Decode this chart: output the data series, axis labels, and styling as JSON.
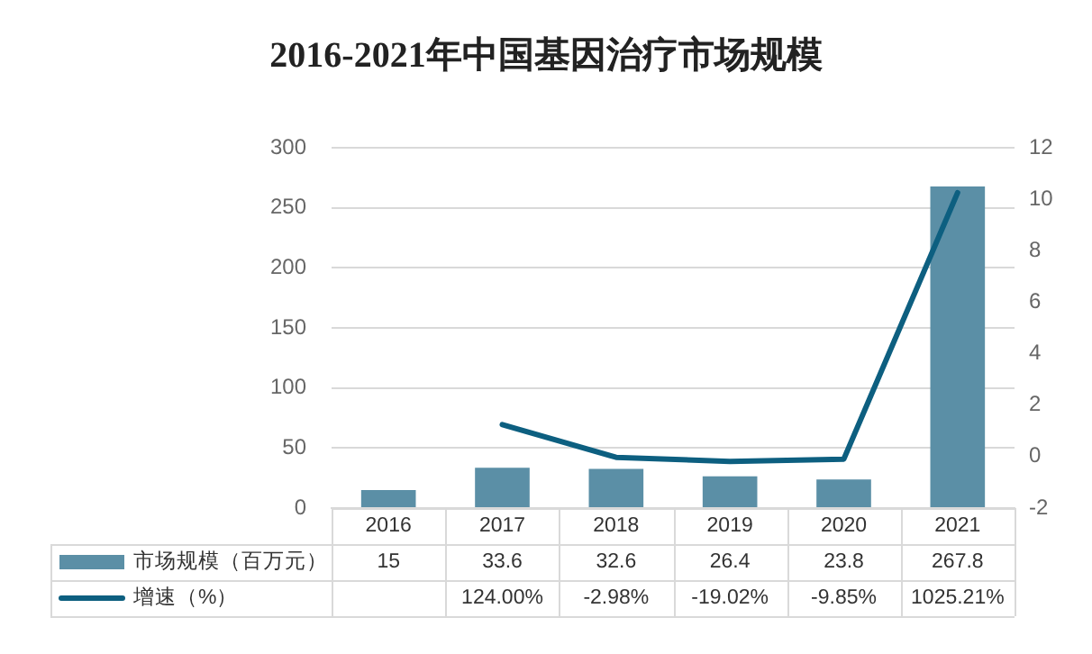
{
  "chart_data": {
    "type": "bar",
    "title": "2016-2021年中国基因治疗市场规模",
    "categories": [
      "2016",
      "2017",
      "2018",
      "2019",
      "2020",
      "2021"
    ],
    "series": [
      {
        "name": "市场规模（百万元）",
        "color": "#5b8fa6",
        "values": [
          15,
          33.6,
          32.6,
          26.4,
          23.8,
          267.8
        ]
      },
      {
        "name": "增速（%）",
        "type": "line",
        "axis": "y2",
        "color": "#0d5f80",
        "values": [
          null,
          1.24,
          -0.0298,
          -0.1902,
          -0.0985,
          10.2521
        ],
        "value_labels": [
          null,
          "124.00%",
          "-2.98%",
          "-19.02%",
          "-9.85%",
          "1025.21%"
        ]
      }
    ],
    "data_labels": true,
    "ylim": [
      0,
      300
    ],
    "yticks": [
      0,
      50,
      100,
      150,
      200,
      250,
      300
    ],
    "y2lim": [
      -2,
      12
    ],
    "y2ticks": [
      -2,
      0,
      2,
      4,
      6,
      8,
      10,
      12
    ],
    "grid": "y",
    "legend": "bottom",
    "marker": "none",
    "line_style": "solid"
  }
}
